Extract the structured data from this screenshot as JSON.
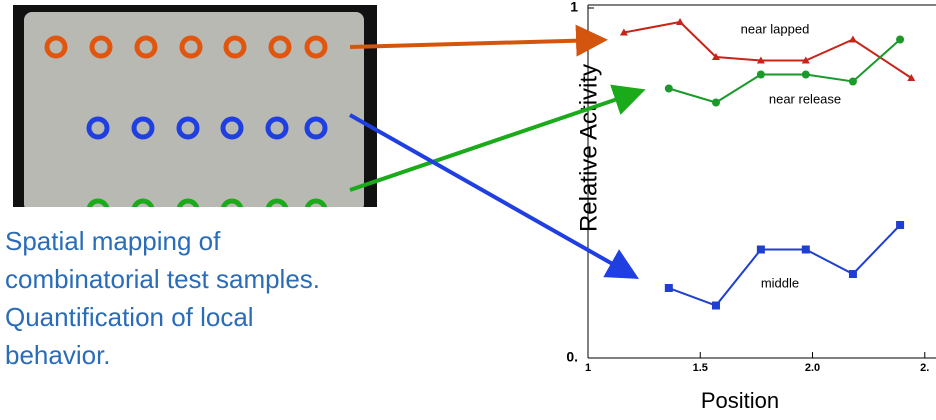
{
  "chart_data": {
    "type": "line",
    "xlabel": "Position",
    "ylabel": "Relative Activity",
    "xlim": [
      1.0,
      2.55
    ],
    "ylim": [
      0,
      1
    ],
    "xticks": [
      1.0,
      {
        "value": 1.5,
        "label": "1.5"
      },
      {
        "value": 2.0,
        "label": "2.0"
      },
      {
        "value": 2.5,
        "label": "2."
      }
    ],
    "yticks": [
      {
        "value": 0,
        "label": "0."
      },
      1
    ],
    "series": [
      {
        "name": "near lapped",
        "color": "#c8241a",
        "marker": "triangle",
        "x": [
          1.16,
          1.41,
          1.57,
          1.77,
          1.97,
          2.18,
          2.44
        ],
        "values": [
          0.93,
          0.96,
          0.86,
          0.85,
          0.85,
          0.91,
          0.8
        ]
      },
      {
        "name": "near release",
        "color": "#1a9a2a",
        "marker": "circle",
        "x": [
          1.36,
          1.57,
          1.77,
          1.97,
          2.18,
          2.39
        ],
        "values": [
          0.77,
          0.73,
          0.81,
          0.81,
          0.79,
          0.91
        ]
      },
      {
        "name": "middle",
        "color": "#1f3fd0",
        "marker": "square",
        "x": [
          1.36,
          1.57,
          1.77,
          1.97,
          2.18,
          2.39
        ],
        "values": [
          0.2,
          0.15,
          0.31,
          0.31,
          0.24,
          0.38
        ]
      }
    ]
  },
  "caption": [
    "Spatial mapping of",
    "combinatorial test samples.",
    "Quantification of local",
    "behavior."
  ]
}
